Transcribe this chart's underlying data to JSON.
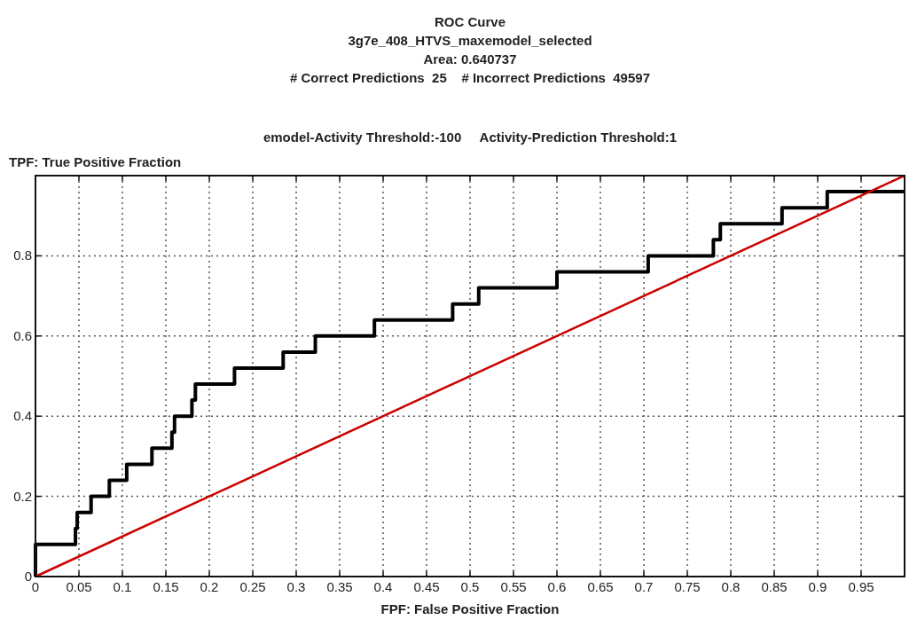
{
  "chart_data": {
    "type": "line",
    "title": "ROC Curve",
    "subtitle": "3g7e_408_HTVS_maxemodel_selected",
    "annotations": [
      "Area: 0.640737",
      "# Correct Predictions  25    # Incorrect Predictions  49597",
      "emodel-Activity Threshold:-100     Activity-Prediction Threshold:1"
    ],
    "xlabel": "FPF: False Positive Fraction",
    "ylabel": "TPF: True Positive Fraction",
    "xlim": [
      0,
      1
    ],
    "ylim": [
      0,
      1
    ],
    "xticks": [
      0,
      0.05,
      0.1,
      0.15,
      0.2,
      0.25,
      0.3,
      0.35,
      0.4,
      0.45,
      0.5,
      0.55,
      0.6,
      0.65,
      0.7,
      0.75,
      0.8,
      0.85,
      0.9,
      0.95
    ],
    "yticks": [
      0,
      0.2,
      0.4,
      0.6,
      0.8
    ],
    "grid": true,
    "marker": "none",
    "series": [
      {
        "type": "step",
        "color": "#000000",
        "x": [
          0,
          0,
          0.046,
          0.048,
          0.064,
          0.085,
          0.105,
          0.134,
          0.157,
          0.16,
          0.18,
          0.184,
          0.229,
          0.285,
          0.322,
          0.39,
          0.48,
          0.51,
          0.6,
          0.705,
          0.78,
          0.788,
          0.859,
          0.911,
          1
        ],
        "values": [
          0,
          0.08,
          0.12,
          0.16,
          0.2,
          0.24,
          0.28,
          0.32,
          0.36,
          0.4,
          0.44,
          0.48,
          0.52,
          0.56,
          0.6,
          0.64,
          0.68,
          0.72,
          0.76,
          0.8,
          0.84,
          0.88,
          0.92,
          0.96,
          0.96
        ]
      },
      {
        "color": "#cc0000",
        "x": [
          0,
          1
        ],
        "values": [
          0,
          1
        ]
      }
    ]
  }
}
